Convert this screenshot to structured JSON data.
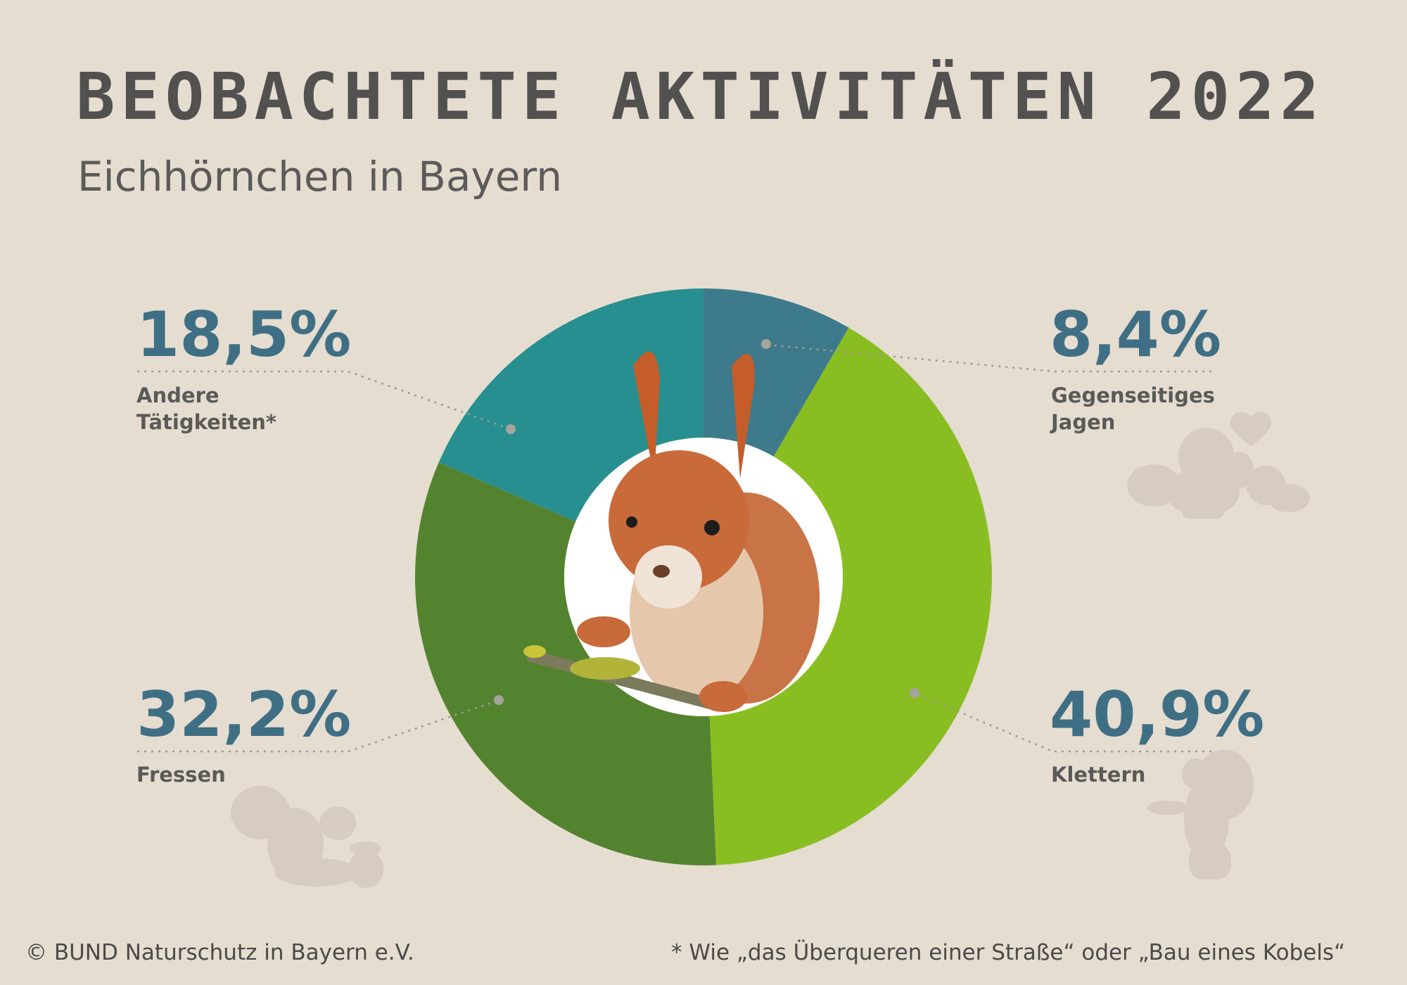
{
  "header": {
    "title": "BEOBACHTETE AKTIVITÄTEN 2022",
    "subtitle": "Eichhörnchen in Bayern"
  },
  "chart_data": {
    "type": "pie",
    "style": "donut",
    "title": "BEOBACHTETE AKTIVITÄTEN 2022",
    "subtitle": "Eichhörnchen in Bayern",
    "labels": [
      "Gegenseitiges Jagen",
      "Klettern",
      "Fressen",
      "Andere Tätigkeiten*"
    ],
    "values": [
      8.4,
      40.9,
      32.2,
      18.5
    ],
    "value_labels": [
      "8,4%",
      "40,9%",
      "32,2%",
      "18,5%"
    ],
    "colors": [
      "#3d7a8c",
      "#89be22",
      "#548330",
      "#278f8f"
    ],
    "legend": "none"
  },
  "labels": {
    "top_right": {
      "pct": "8,4%",
      "line1": "Gegenseitiges",
      "line2": "Jagen"
    },
    "bottom_right": {
      "pct": "40,9%",
      "line1": "Klettern"
    },
    "bottom_left": {
      "pct": "32,2%",
      "line1": "Fressen"
    },
    "top_left": {
      "pct": "18,5%",
      "line1": "Andere",
      "line2": "Tätigkeiten*"
    }
  },
  "footer": {
    "copyright": "© BUND Naturschutz in Bayern e.V.",
    "note": "* Wie „das Überqueren einer Straße“ oder „Bau eines Kobels“"
  },
  "icons": [
    "squirrels-heart-icon",
    "squirrel-acorn-icon",
    "squirrel-standing-icon",
    "squirrel-photo"
  ]
}
